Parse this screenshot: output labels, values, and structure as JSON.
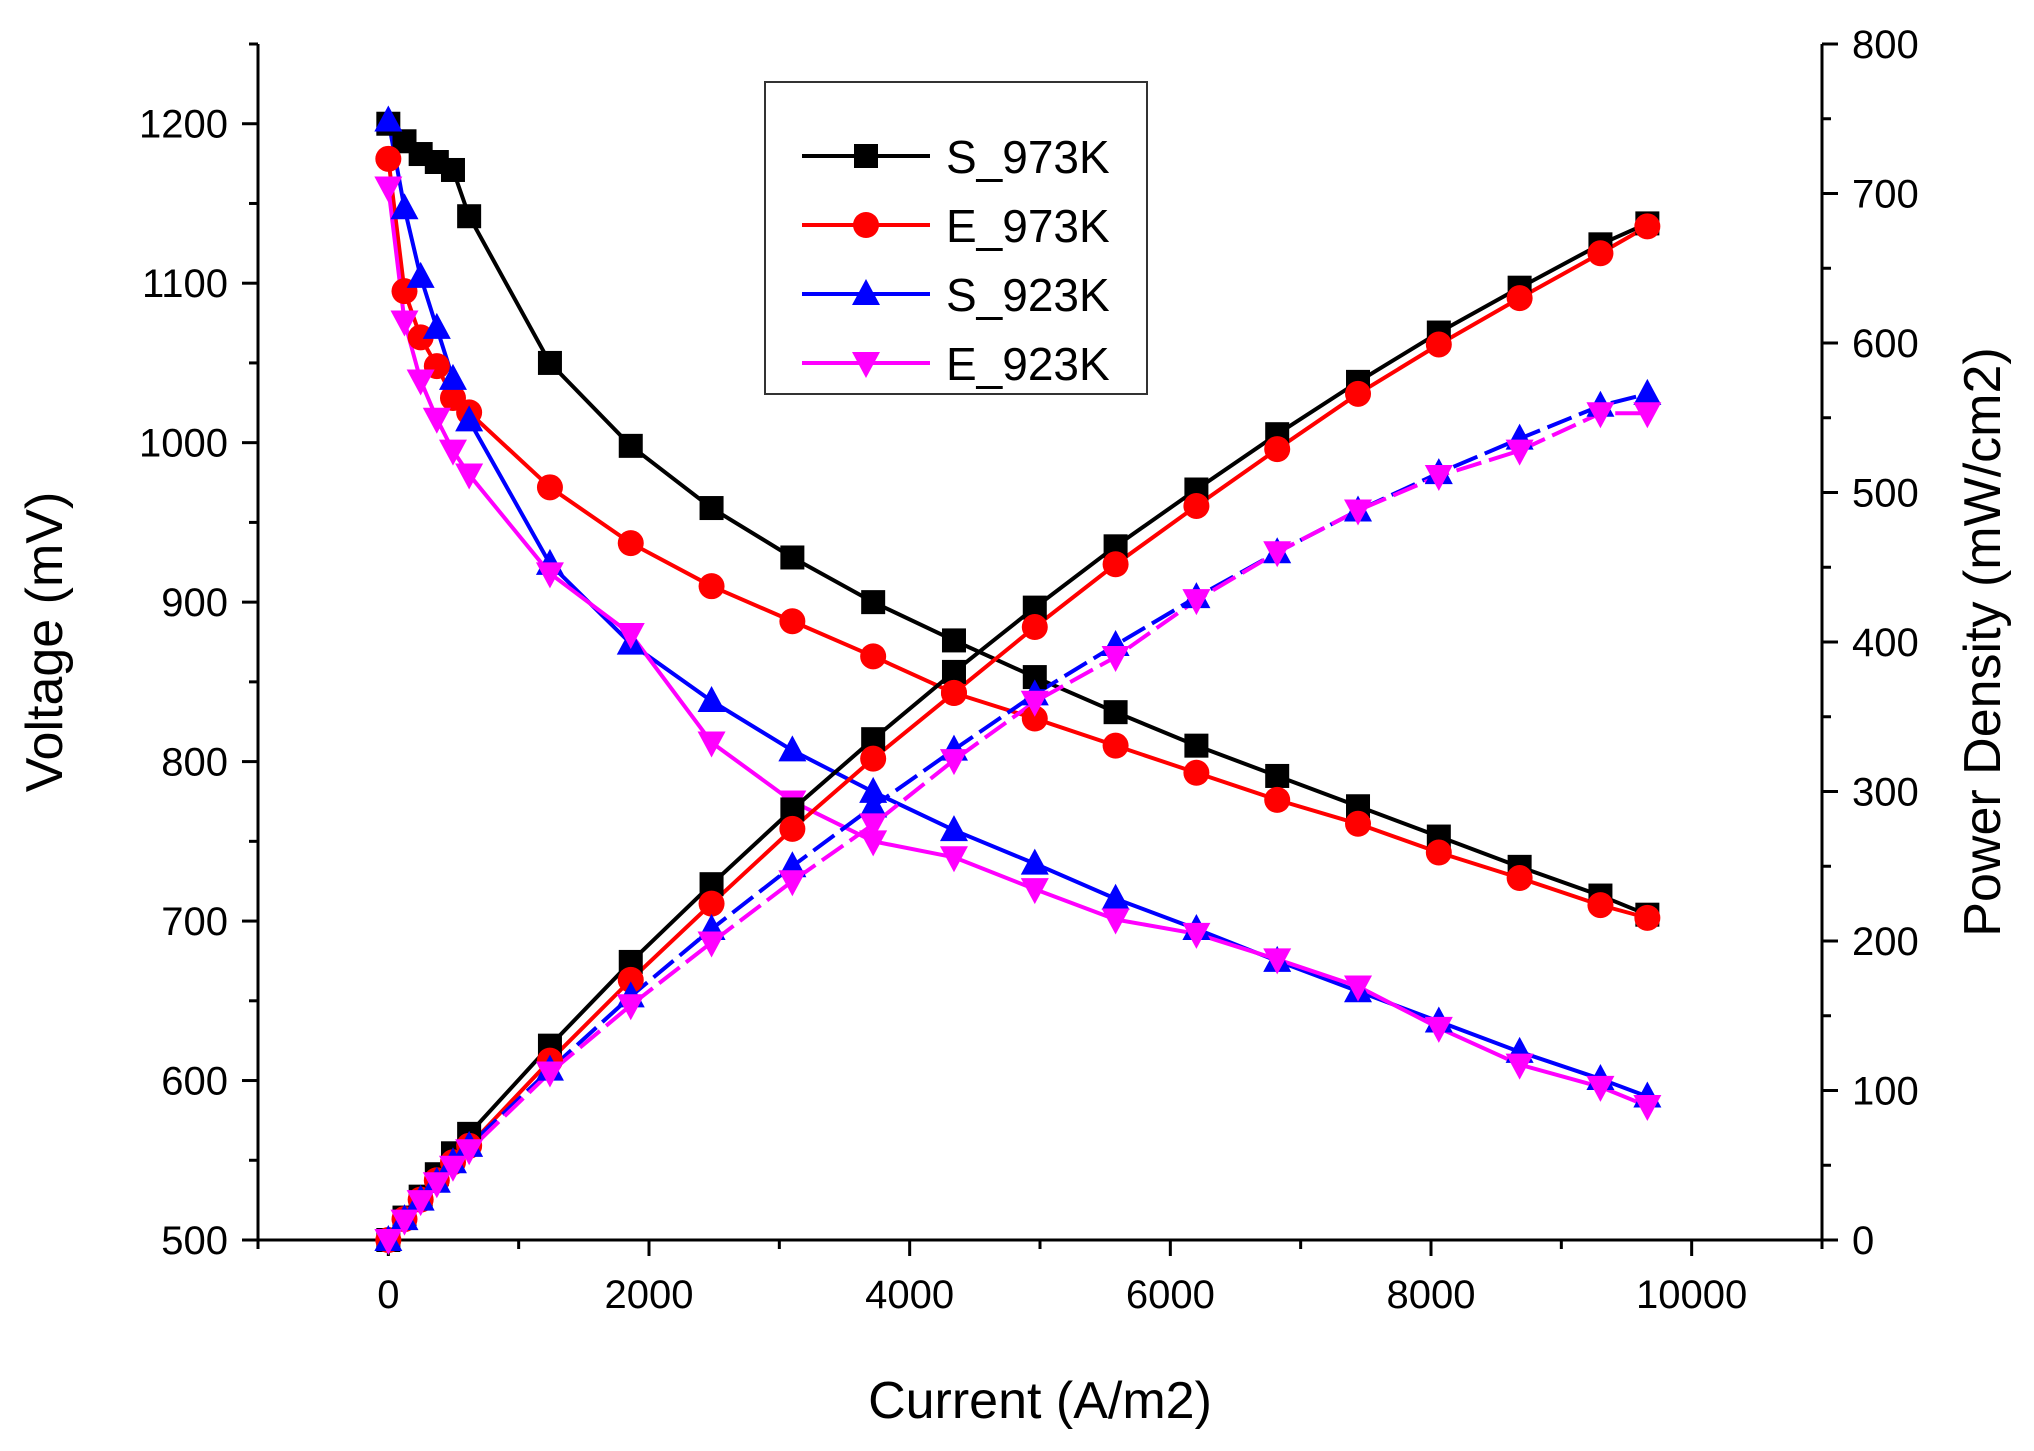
{
  "chart_data": {
    "type": "line",
    "title": "",
    "xlabel": "Current (A/m2)",
    "ylabel": "Voltage (mV)",
    "y2label": "Power Density (mW/cm2)",
    "xlim": [
      -1000,
      11000
    ],
    "ylim": [
      500,
      1250
    ],
    "y2lim": [
      0,
      800
    ],
    "x_ticks": [
      0,
      2000,
      4000,
      6000,
      8000,
      10000
    ],
    "y_ticks": [
      500,
      600,
      700,
      800,
      900,
      1000,
      1100,
      1200
    ],
    "y2_ticks": [
      0,
      100,
      200,
      300,
      400,
      500,
      600,
      700,
      800
    ],
    "legend_position": "top-center",
    "x": [
      0,
      124,
      248,
      372,
      496,
      620,
      1240,
      1860,
      2480,
      3100,
      3720,
      4340,
      4960,
      5580,
      6200,
      6820,
      7440,
      8060,
      8680,
      9300,
      9660
    ],
    "series": [
      {
        "name": "S_973K",
        "color": "#000000",
        "marker": "square",
        "axis": "left",
        "values": [
          1200,
          1189,
          1181,
          1176,
          1171,
          1142,
          1050,
          998,
          959,
          928,
          900,
          876,
          853,
          831,
          810,
          791,
          772,
          753,
          734,
          716,
          704
        ]
      },
      {
        "name": "E_973K",
        "color": "#ff0000",
        "marker": "circle",
        "axis": "left",
        "values": [
          1178,
          1095,
          1066,
          1048,
          1028,
          1019,
          972,
          937,
          910,
          888,
          866,
          843,
          827,
          810,
          793,
          776,
          761,
          743,
          727,
          710,
          702
        ]
      },
      {
        "name": "S_923K",
        "color": "#0000ff",
        "marker": "triangle-up",
        "axis": "left",
        "values": [
          1202,
          1147,
          1104,
          1072,
          1040,
          1014,
          924,
          874,
          838,
          807,
          781,
          757,
          736,
          714,
          695,
          675,
          656,
          637,
          618,
          601,
          590
        ]
      },
      {
        "name": "E_923K",
        "color": "#ff00ff",
        "marker": "triangle-down",
        "axis": "left",
        "values": [
          1160,
          1076,
          1039,
          1015,
          995,
          980,
          918,
          880,
          812,
          775,
          750,
          740,
          720,
          701,
          692,
          676,
          659,
          633,
          610,
          596,
          584
        ]
      },
      {
        "name": "S_973K power",
        "color": "#000000",
        "marker": "square",
        "axis": "right",
        "values": [
          0,
          15,
          29,
          44,
          58,
          71,
          130,
          186,
          238,
          288,
          335,
          380,
          423,
          464,
          502,
          539,
          574,
          607,
          637,
          666,
          680
        ]
      },
      {
        "name": "E_973K power",
        "color": "#ff0000",
        "marker": "circle",
        "axis": "right",
        "values": [
          0,
          14,
          27,
          40,
          52,
          63,
          120,
          174,
          225,
          275,
          322,
          366,
          410,
          452,
          491,
          529,
          566,
          599,
          630,
          660,
          678
        ]
      },
      {
        "name": "S_923K power",
        "color": "#0000ff",
        "marker": "triangle-up",
        "axis": "right",
        "values": [
          0,
          14,
          27,
          39,
          52,
          63,
          114,
          163,
          208,
          250,
          290,
          328,
          365,
          398,
          430,
          460,
          488,
          513,
          536,
          558,
          566
        ]
      },
      {
        "name": "E_923K power",
        "color": "#ff00ff",
        "marker": "triangle-down",
        "axis": "right",
        "values": [
          0,
          13,
          26,
          38,
          49,
          60,
          112,
          157,
          199,
          240,
          278,
          321,
          360,
          390,
          428,
          460,
          488,
          511,
          528,
          553,
          553
        ]
      }
    ]
  }
}
